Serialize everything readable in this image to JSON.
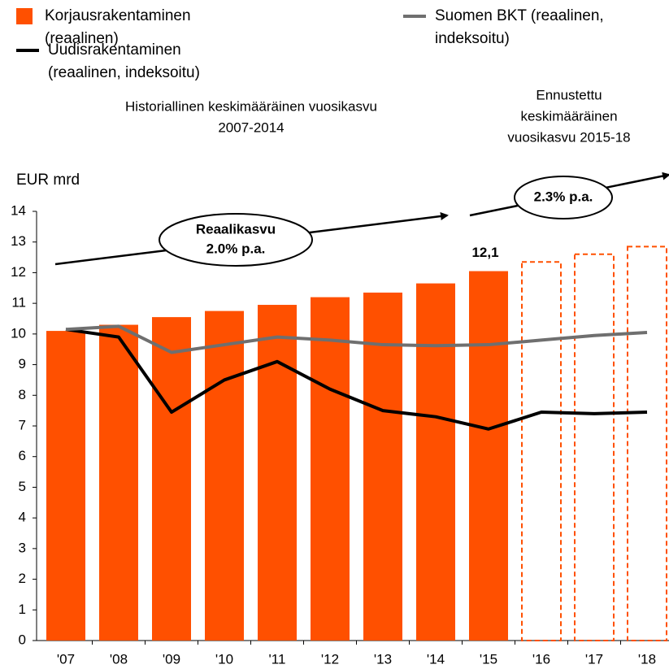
{
  "chart_data": {
    "type": "bar",
    "y_label": "EUR mrd",
    "categories": [
      "'07",
      "'08",
      "'09",
      "'10",
      "'11",
      "'12",
      "'13",
      "'14",
      "'15",
      "'16",
      "'17",
      "'18"
    ],
    "series": [
      {
        "name": "Korjausrakentaminen (reaalinen)",
        "color": "#ff5000",
        "type": "bar",
        "values": [
          10.1,
          10.3,
          10.55,
          10.75,
          10.95,
          11.2,
          11.35,
          11.65,
          12.05,
          12.35,
          12.6,
          12.85
        ],
        "value_labels": [
          null,
          null,
          null,
          null,
          null,
          null,
          null,
          null,
          "12,1",
          null,
          null,
          null
        ],
        "style": [
          "solid",
          "solid",
          "solid",
          "solid",
          "solid",
          "solid",
          "solid",
          "solid",
          "solid",
          "dashed",
          "dashed",
          "dashed"
        ]
      },
      {
        "name": "Uudisrakentaminen (reaalinen, indeksoitu)",
        "color": "#000000",
        "type": "line",
        "values": [
          10.15,
          9.9,
          7.45,
          8.5,
          9.1,
          8.2,
          7.5,
          7.3,
          6.9,
          7.45,
          7.4,
          7.45
        ]
      },
      {
        "name": "Suomen BKT (reaalinen, indeksoitu)",
        "color": "#6f6f6f",
        "type": "line",
        "values": [
          10.15,
          10.25,
          9.4,
          9.65,
          9.9,
          9.8,
          9.65,
          9.62,
          9.65,
          9.8,
          9.95,
          10.05
        ]
      }
    ],
    "ylim": [
      0,
      14
    ],
    "yticks": [
      0,
      1,
      2,
      3,
      4,
      5,
      6,
      7,
      8,
      9,
      10,
      11,
      12,
      13,
      14
    ],
    "annotations": [
      {
        "lines": [
          "Historiallinen keskimääräinen vuosikasvu",
          "2007-2014"
        ]
      },
      {
        "lines": [
          "Ennustettu",
          "keskimääräinen",
          "vuosikasvu 2015-18"
        ]
      },
      {
        "lines": [
          "Reaalikasvu",
          "2.0% p.a."
        ]
      },
      {
        "lines": [
          "2.3% p.a."
        ]
      }
    ]
  }
}
